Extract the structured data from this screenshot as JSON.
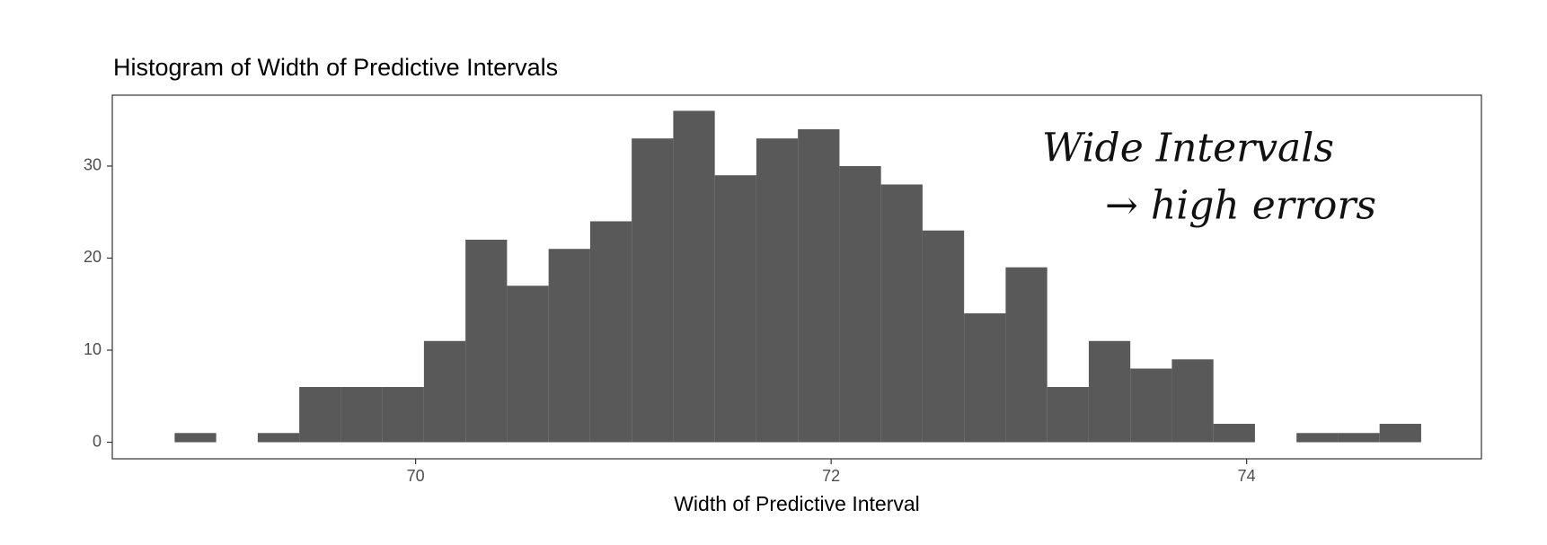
{
  "chart_data": {
    "type": "histogram",
    "title": "Histogram of Width of Predictive Intervals",
    "x_label": "Width of Predictive Interval",
    "annotations": [
      "Wide Intervals",
      "→ high errors"
    ],
    "bins": [
      68.84,
      69.04,
      69.24,
      69.44,
      69.64,
      69.84,
      70.04,
      70.24,
      70.44,
      70.64,
      70.84,
      71.04,
      71.24,
      71.44,
      71.64,
      71.84,
      72.04,
      72.24,
      72.44,
      72.64,
      72.84,
      73.04,
      73.24,
      73.44,
      73.64,
      73.84,
      74.04,
      74.24,
      74.44,
      74.64,
      74.84
    ],
    "values": [
      1,
      0,
      1,
      6,
      6,
      6,
      11,
      22,
      17,
      21,
      24,
      33,
      36,
      29,
      33,
      34,
      30,
      28,
      23,
      14,
      19,
      6,
      11,
      8,
      9,
      2,
      0,
      1,
      1,
      2
    ],
    "color": "#595959",
    "xlim": [
      68.54,
      75.13
    ],
    "ylim": [
      -1.8,
      37.7
    ],
    "xticks": [
      70,
      72,
      74
    ],
    "yticks": [
      0,
      10,
      20,
      30
    ],
    "grid": false
  }
}
